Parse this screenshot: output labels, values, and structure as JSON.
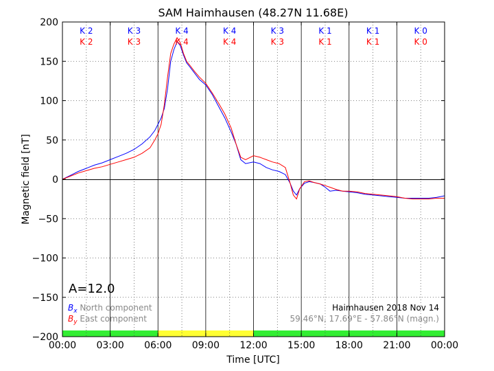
{
  "chart_data": {
    "type": "line",
    "title": "SAM Haimhausen (48.27N 11.68E)",
    "xlabel": "Time [UTC]",
    "ylabel": "Magnetic field [nT]",
    "xlim": [
      0,
      24
    ],
    "ylim": [
      -200,
      200
    ],
    "x_ticks": [
      0,
      3,
      6,
      9,
      12,
      15,
      18,
      21,
      24
    ],
    "x_tick_labels": [
      "00:00",
      "03:00",
      "06:00",
      "09:00",
      "12:00",
      "15:00",
      "18:00",
      "21:00",
      "00:00"
    ],
    "y_ticks": [
      -200,
      -150,
      -100,
      -50,
      0,
      50,
      100,
      150,
      200
    ],
    "y_tick_labels": [
      "−200",
      "−150",
      "−100",
      "−50",
      "0",
      "50",
      "100",
      "150",
      "200"
    ],
    "grid": true,
    "legend_position": "bottom-left",
    "k_index": {
      "x_labels": [
        "K 2",
        "K 3",
        "K 4",
        "K 4",
        "K 3",
        "K 1",
        "K 1",
        "K 0"
      ],
      "y_labels": [
        "K 2",
        "K 3",
        "K 4",
        "K 4",
        "K 3",
        "K 1",
        "K 1",
        "K 0"
      ]
    },
    "a_index": "A=12.0",
    "station_info": "Haimhausen 2018 Nov 14",
    "coords_info": "59.46°N, 17.69°E - 57.86°N (magn.)",
    "activity_bar": [
      {
        "from": 0,
        "to": 6,
        "color": "#33ee33"
      },
      {
        "from": 6,
        "to": 12,
        "color": "#ffff33"
      },
      {
        "from": 12,
        "to": 24,
        "color": "#33ee33"
      }
    ],
    "series": [
      {
        "name": "North component",
        "symbol": "Bx",
        "color": "#0000ff",
        "x": [
          0,
          0.5,
          1,
          1.5,
          2,
          2.5,
          3,
          3.5,
          4,
          4.5,
          5,
          5.5,
          5.8,
          6,
          6.2,
          6.4,
          6.6,
          6.8,
          7,
          7.2,
          7.4,
          7.6,
          7.8,
          8,
          8.3,
          8.6,
          9,
          9.4,
          9.8,
          10.2,
          10.6,
          10.9,
          11.2,
          11.5,
          12,
          12.4,
          12.8,
          13.2,
          13.6,
          14,
          14.3,
          14.5,
          14.7,
          14.9,
          15.2,
          15.5,
          15.8,
          16.2,
          16.5,
          16.8,
          17.2,
          17.6,
          18,
          18.5,
          19,
          19.5,
          20,
          20.5,
          21,
          21.5,
          22,
          22.5,
          23,
          23.5,
          24
        ],
        "y": [
          0,
          5,
          10,
          14,
          18,
          21,
          25,
          29,
          33,
          38,
          45,
          54,
          62,
          70,
          78,
          90,
          115,
          150,
          165,
          175,
          170,
          158,
          148,
          143,
          135,
          127,
          120,
          108,
          93,
          78,
          60,
          45,
          25,
          20,
          22,
          20,
          15,
          12,
          10,
          6,
          -5,
          -15,
          -20,
          -12,
          -5,
          -3,
          -4,
          -6,
          -10,
          -15,
          -14,
          -15,
          -16,
          -17,
          -19,
          -20,
          -21,
          -22,
          -23,
          -24,
          -24,
          -24,
          -24,
          -23,
          -21
        ]
      },
      {
        "name": "East component",
        "symbol": "By",
        "color": "#ff0000",
        "x": [
          0,
          0.5,
          1,
          1.5,
          2,
          2.5,
          3,
          3.5,
          4,
          4.5,
          5,
          5.5,
          5.8,
          6,
          6.2,
          6.4,
          6.6,
          6.8,
          7,
          7.2,
          7.4,
          7.6,
          7.8,
          8,
          8.3,
          8.6,
          9,
          9.4,
          9.8,
          10.2,
          10.6,
          10.9,
          11.2,
          11.5,
          12,
          12.4,
          12.8,
          13.2,
          13.6,
          14,
          14.3,
          14.5,
          14.7,
          14.9,
          15.2,
          15.5,
          15.8,
          16.2,
          16.5,
          16.8,
          17.2,
          17.6,
          18,
          18.5,
          19,
          19.5,
          20,
          20.5,
          21,
          21.5,
          22,
          22.5,
          23,
          23.5,
          24
        ],
        "y": [
          0,
          4,
          8,
          11,
          14,
          16,
          19,
          22,
          25,
          28,
          33,
          40,
          50,
          58,
          70,
          95,
          130,
          160,
          172,
          180,
          174,
          160,
          150,
          145,
          137,
          130,
          122,
          110,
          97,
          83,
          65,
          45,
          28,
          25,
          30,
          28,
          25,
          22,
          20,
          15,
          -5,
          -20,
          -25,
          -12,
          -3,
          -2,
          -4,
          -6,
          -8,
          -10,
          -13,
          -15,
          -15,
          -16,
          -18,
          -19,
          -20,
          -21,
          -22,
          -24,
          -25,
          -25,
          -25,
          -24,
          -24
        ]
      }
    ]
  }
}
